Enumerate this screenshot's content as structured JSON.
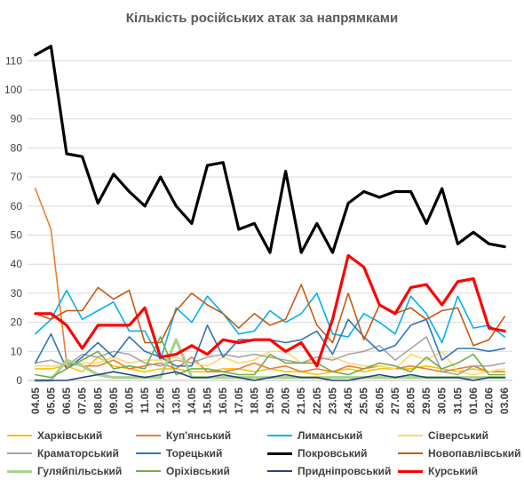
{
  "chart_data": {
    "type": "line",
    "title": "Кількість російських атак за напрямками",
    "x": [
      "04.05",
      "05.05",
      "06.05",
      "07.05",
      "08.05",
      "09.05",
      "10.05",
      "11.05",
      "12.05",
      "13.05",
      "14.05",
      "15.05",
      "16.05",
      "17.05",
      "18.05",
      "19.05",
      "20.05",
      "21.05",
      "22.05",
      "23.05",
      "24.05",
      "25.05",
      "26.05",
      "27.05",
      "28.05",
      "29.05",
      "30.05",
      "31.05",
      "01.06",
      "02.06",
      "03.06"
    ],
    "yticks": [
      0,
      10,
      20,
      30,
      40,
      50,
      60,
      70,
      80,
      90,
      100,
      110
    ],
    "ylim": [
      0,
      115
    ],
    "grid": true,
    "legend_position": "bottom",
    "series": [
      {
        "name": "Харківський",
        "color": "#ffc000",
        "width": 1.6,
        "values": [
          4,
          4,
          5,
          3,
          8,
          5,
          4,
          3,
          4,
          4,
          3,
          3,
          4,
          4,
          3,
          4,
          3,
          3,
          2,
          3,
          4,
          3,
          4,
          4,
          4,
          5,
          4,
          3,
          4,
          3,
          3
        ]
      },
      {
        "name": "Куп'янський",
        "color": "#ed7d31",
        "width": 1.6,
        "values": [
          66,
          52,
          6,
          5,
          5,
          7,
          4,
          5,
          6,
          4,
          8,
          3,
          3,
          4,
          6,
          4,
          5,
          3,
          4,
          3,
          5,
          4,
          5,
          4,
          5,
          4,
          3,
          4,
          5,
          3,
          3
        ]
      },
      {
        "name": "Лиманський",
        "color": "#00b0f0",
        "width": 1.6,
        "values": [
          16,
          21,
          31,
          21,
          24,
          27,
          17,
          17,
          7,
          25,
          20,
          29,
          23,
          16,
          17,
          24,
          20,
          23,
          30,
          16,
          15,
          23,
          20,
          16,
          29,
          23,
          13,
          29,
          18,
          19,
          15
        ]
      },
      {
        "name": "Сіверський",
        "color": "#ffd966",
        "width": 1.6,
        "values": [
          5,
          5,
          5,
          6,
          6,
          8,
          6,
          7,
          7,
          8,
          6,
          5,
          8,
          6,
          7,
          10,
          10,
          6,
          7,
          8,
          6,
          5,
          5,
          4,
          9,
          7,
          10,
          3,
          2,
          3,
          4
        ]
      },
      {
        "name": "Краматорський",
        "color": "#a5a5a5",
        "width": 1.6,
        "values": [
          6,
          7,
          5,
          9,
          8,
          10,
          9,
          6,
          5,
          7,
          6,
          8,
          9,
          8,
          9,
          8,
          7,
          6,
          8,
          7,
          9,
          10,
          12,
          7,
          11,
          15,
          3,
          2,
          5,
          5,
          6
        ]
      },
      {
        "name": "Торецький",
        "color": "#2e75b6",
        "width": 1.6,
        "values": [
          6,
          16,
          4,
          8,
          13,
          8,
          15,
          10,
          8,
          5,
          5,
          19,
          8,
          14,
          14,
          14,
          13,
          14,
          17,
          9,
          21,
          15,
          10,
          12,
          19,
          21,
          7,
          11,
          11,
          10,
          11
        ]
      },
      {
        "name": "Покровський",
        "color": "#000000",
        "width": 3.2,
        "values": [
          112,
          115,
          78,
          77,
          61,
          71,
          65,
          60,
          70,
          60,
          54,
          74,
          75,
          52,
          54,
          44,
          72,
          44,
          54,
          44,
          61,
          65,
          63,
          65,
          65,
          54,
          66,
          47,
          51,
          47,
          46
        ]
      },
      {
        "name": "Новопавлівський",
        "color": "#c55a11",
        "width": 1.6,
        "values": [
          23,
          21,
          24,
          24,
          32,
          28,
          31,
          13,
          13,
          24,
          30,
          26,
          23,
          18,
          23,
          19,
          21,
          33,
          19,
          13,
          30,
          14,
          26,
          23,
          25,
          21,
          24,
          25,
          12,
          14,
          22
        ]
      },
      {
        "name": "Гуляйпільський",
        "color": "#a9d18e",
        "width": 3.2,
        "values": [
          0,
          0,
          7,
          5,
          2,
          1,
          1,
          1,
          1,
          14,
          1,
          1,
          1,
          1,
          1,
          1,
          1,
          1,
          1,
          1,
          1,
          1,
          1,
          1,
          1,
          1,
          1,
          1,
          1,
          1,
          1
        ]
      },
      {
        "name": "Оріхівський",
        "color": "#70ad47",
        "width": 1.6,
        "values": [
          2,
          1,
          4,
          7,
          10,
          4,
          5,
          4,
          15,
          2,
          4,
          4,
          3,
          2,
          2,
          9,
          6,
          6,
          6,
          3,
          2,
          4,
          6,
          5,
          3,
          8,
          4,
          6,
          9,
          2,
          2
        ]
      },
      {
        "name": "Придніпровський",
        "color": "#264478",
        "width": 1.6,
        "values": [
          0,
          0,
          0,
          1,
          2,
          3,
          2,
          1,
          2,
          3,
          1,
          1,
          2,
          1,
          0,
          1,
          2,
          1,
          1,
          0,
          0,
          1,
          2,
          1,
          2,
          1,
          1,
          1,
          0,
          1,
          1
        ]
      },
      {
        "name": "Курський",
        "color": "#ff0000",
        "width": 3.2,
        "values": [
          23,
          23,
          19,
          11,
          19,
          19,
          19,
          25,
          8,
          9,
          12,
          9,
          14,
          13,
          14,
          14,
          10,
          13,
          5,
          21,
          43,
          39,
          26,
          23,
          32,
          33,
          26,
          34,
          35,
          18,
          17
        ]
      }
    ]
  }
}
